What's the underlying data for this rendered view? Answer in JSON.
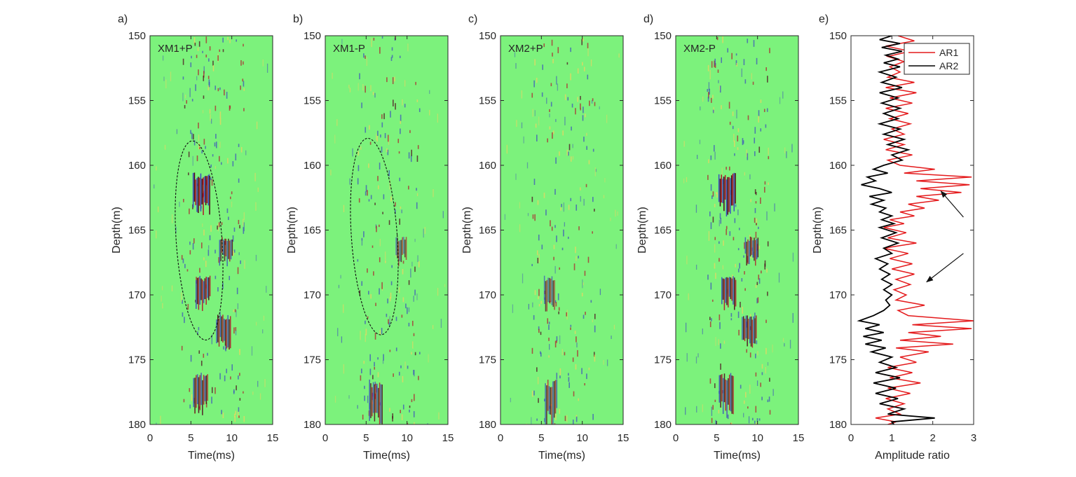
{
  "figure": {
    "panel_letters": [
      "a)",
      "b)",
      "c)",
      "d)",
      "e)"
    ]
  },
  "chart_data": [
    {
      "type": "heatmap",
      "panel": "a)",
      "inset_label": "XM1+P",
      "xlabel": "Time(ms)",
      "ylabel": "Depth(m)",
      "xlim": [
        0,
        15
      ],
      "ylim": [
        150,
        180
      ],
      "y_reversed": true,
      "xticks": [
        "0",
        "5",
        "10",
        "15"
      ],
      "yticks": [
        "150",
        "155",
        "160",
        "165",
        "170",
        "175",
        "180"
      ],
      "colormap": [
        "#3b4cc0",
        "#7fc97f",
        "#f4d35e",
        "#b2182b",
        "#4d0019"
      ],
      "background_color": "#7CF27C",
      "strong_reflections": [
        {
          "depth_from": 160.5,
          "depth_to": 163.5,
          "time": 6.3,
          "strength": 1.0
        },
        {
          "depth_from": 168.5,
          "depth_to": 171,
          "time": 6.5,
          "strength": 0.8
        },
        {
          "depth_from": 171.5,
          "depth_to": 174,
          "time": 9.0,
          "strength": 0.7
        },
        {
          "depth_from": 176,
          "depth_to": 179,
          "time": 6.2,
          "strength": 0.7
        },
        {
          "depth_from": 165.5,
          "depth_to": 167.5,
          "time": 9.3,
          "strength": 0.6
        }
      ],
      "ellipse": {
        "center_time": 6.0,
        "center_depth": 165.8,
        "half_width_time": 2.8,
        "half_height_depth": 7.7,
        "style": "dashed"
      }
    },
    {
      "type": "heatmap",
      "panel": "b)",
      "inset_label": "XM1-P",
      "xlabel": "Time(ms)",
      "ylabel": "Depth(m)",
      "xlim": [
        0,
        15
      ],
      "ylim": [
        150,
        180
      ],
      "y_reversed": true,
      "xticks": [
        "0",
        "5",
        "10",
        "15"
      ],
      "yticks": [
        "150",
        "155",
        "160",
        "165",
        "170",
        "175",
        "180"
      ],
      "colormap": [
        "#3b4cc0",
        "#7fc97f",
        "#f4d35e",
        "#b2182b",
        "#4d0019"
      ],
      "background_color": "#7CF27C",
      "strong_reflections": [
        {
          "depth_from": 176.5,
          "depth_to": 180,
          "time": 6.2,
          "strength": 0.6
        },
        {
          "depth_from": 165.5,
          "depth_to": 167.5,
          "time": 9.3,
          "strength": 0.35
        }
      ],
      "ellipse": {
        "center_time": 6.0,
        "center_depth": 165.5,
        "half_width_time": 2.8,
        "half_height_depth": 7.6,
        "style": "dashed"
      }
    },
    {
      "type": "heatmap",
      "panel": "c)",
      "inset_label": "XM2+P",
      "xlabel": "Time(ms)",
      "ylabel": "Depth(m)",
      "xlim": [
        0,
        15
      ],
      "ylim": [
        150,
        180
      ],
      "y_reversed": true,
      "xticks": [
        "0",
        "5",
        "10",
        "15"
      ],
      "yticks": [
        "150",
        "155",
        "160",
        "165",
        "170",
        "175",
        "180"
      ],
      "colormap": [
        "#3b4cc0",
        "#7fc97f",
        "#f4d35e",
        "#b2182b",
        "#4d0019"
      ],
      "background_color": "#7CF27C",
      "strong_reflections": [
        {
          "depth_from": 176.5,
          "depth_to": 180,
          "time": 6.2,
          "strength": 0.5
        },
        {
          "depth_from": 168.5,
          "depth_to": 171,
          "time": 6.0,
          "strength": 0.35
        }
      ]
    },
    {
      "type": "heatmap",
      "panel": "d)",
      "inset_label": "XM2-P",
      "xlabel": "Time(ms)",
      "ylabel": "Depth(m)",
      "xlim": [
        0,
        15
      ],
      "ylim": [
        150,
        180
      ],
      "y_reversed": true,
      "xticks": [
        "0",
        "5",
        "10",
        "15"
      ],
      "yticks": [
        "150",
        "155",
        "160",
        "165",
        "170",
        "175",
        "180"
      ],
      "colormap": [
        "#3b4cc0",
        "#7fc97f",
        "#f4d35e",
        "#b2182b",
        "#4d0019"
      ],
      "background_color": "#7CF27C",
      "strong_reflections": [
        {
          "depth_from": 160.5,
          "depth_to": 163.5,
          "time": 6.3,
          "strength": 1.0
        },
        {
          "depth_from": 168.5,
          "depth_to": 171,
          "time": 6.5,
          "strength": 0.8
        },
        {
          "depth_from": 171.5,
          "depth_to": 174,
          "time": 9.0,
          "strength": 0.7
        },
        {
          "depth_from": 176,
          "depth_to": 179,
          "time": 6.2,
          "strength": 0.7
        },
        {
          "depth_from": 165.5,
          "depth_to": 167.5,
          "time": 9.3,
          "strength": 0.6
        }
      ]
    },
    {
      "type": "line",
      "panel": "e)",
      "xlabel": "Amplitude ratio",
      "ylabel": "Depth(m)",
      "xlim": [
        0,
        3
      ],
      "ylim": [
        150,
        180
      ],
      "y_reversed": true,
      "xticks": [
        "0",
        "1",
        "2",
        "3"
      ],
      "yticks": [
        "150",
        "155",
        "160",
        "165",
        "170",
        "175",
        "180"
      ],
      "legend_position": "top-right",
      "series": [
        {
          "name": "AR1",
          "color": "#e41a1c",
          "points": [
            [
              1.15,
              150
            ],
            [
              1.55,
              150.4
            ],
            [
              0.85,
              150.8
            ],
            [
              1.45,
              151.2
            ],
            [
              0.9,
              151.6
            ],
            [
              1.3,
              152.0
            ],
            [
              0.95,
              152.4
            ],
            [
              1.2,
              152.8
            ],
            [
              0.9,
              153.2
            ],
            [
              1.55,
              153.6
            ],
            [
              0.85,
              154.0
            ],
            [
              1.6,
              154.4
            ],
            [
              0.95,
              154.8
            ],
            [
              1.5,
              155.2
            ],
            [
              0.85,
              155.6
            ],
            [
              1.4,
              156.0
            ],
            [
              0.95,
              156.4
            ],
            [
              1.45,
              156.8
            ],
            [
              1.0,
              157.2
            ],
            [
              1.3,
              157.6
            ],
            [
              0.8,
              158.0
            ],
            [
              1.3,
              158.4
            ],
            [
              0.85,
              158.8
            ],
            [
              1.5,
              159.2
            ],
            [
              0.9,
              159.6
            ],
            [
              1.2,
              160.0
            ],
            [
              2.05,
              160.3
            ],
            [
              1.3,
              160.6
            ],
            [
              2.95,
              160.9
            ],
            [
              1.6,
              161.2
            ],
            [
              2.9,
              161.5
            ],
            [
              1.7,
              161.8
            ],
            [
              2.7,
              162.1
            ],
            [
              1.6,
              162.4
            ],
            [
              2.15,
              162.7
            ],
            [
              1.4,
              163.0
            ],
            [
              1.8,
              163.3
            ],
            [
              1.2,
              163.6
            ],
            [
              1.55,
              163.9
            ],
            [
              0.95,
              164.2
            ],
            [
              1.3,
              164.5
            ],
            [
              0.8,
              164.8
            ],
            [
              1.35,
              165.2
            ],
            [
              0.9,
              165.6
            ],
            [
              1.6,
              166.0
            ],
            [
              0.8,
              166.4
            ],
            [
              1.4,
              166.8
            ],
            [
              0.95,
              167.2
            ],
            [
              1.5,
              167.6
            ],
            [
              1.0,
              168.0
            ],
            [
              1.55,
              168.4
            ],
            [
              1.1,
              168.8
            ],
            [
              1.45,
              169.2
            ],
            [
              1.05,
              169.6
            ],
            [
              1.35,
              170.0
            ],
            [
              1.1,
              170.4
            ],
            [
              1.8,
              170.8
            ],
            [
              1.15,
              171.2
            ],
            [
              1.4,
              171.6
            ],
            [
              3.0,
              172.0
            ],
            [
              1.5,
              172.3
            ],
            [
              2.95,
              172.6
            ],
            [
              1.4,
              172.9
            ],
            [
              2.2,
              173.2
            ],
            [
              1.2,
              173.5
            ],
            [
              2.5,
              173.8
            ],
            [
              1.1,
              174.1
            ],
            [
              1.9,
              174.4
            ],
            [
              1.2,
              174.8
            ],
            [
              1.6,
              175.2
            ],
            [
              0.9,
              175.6
            ],
            [
              1.5,
              176.0
            ],
            [
              0.95,
              176.4
            ],
            [
              1.7,
              176.8
            ],
            [
              0.9,
              177.2
            ],
            [
              1.45,
              177.6
            ],
            [
              0.85,
              178.0
            ],
            [
              1.3,
              178.4
            ],
            [
              0.9,
              178.8
            ],
            [
              1.2,
              179.2
            ],
            [
              0.6,
              179.5
            ],
            [
              1.1,
              179.8
            ],
            [
              0.9,
              180.0
            ]
          ]
        },
        {
          "name": "AR2",
          "color": "#000000",
          "points": [
            [
              1.0,
              150
            ],
            [
              0.7,
              150.3
            ],
            [
              1.2,
              150.6
            ],
            [
              0.75,
              150.9
            ],
            [
              1.25,
              151.2
            ],
            [
              0.85,
              151.5
            ],
            [
              1.15,
              151.8
            ],
            [
              0.8,
              152.1
            ],
            [
              1.2,
              152.4
            ],
            [
              0.7,
              152.8
            ],
            [
              1.1,
              153.2
            ],
            [
              0.75,
              153.6
            ],
            [
              1.25,
              154.0
            ],
            [
              0.7,
              154.4
            ],
            [
              1.15,
              154.8
            ],
            [
              0.75,
              155.2
            ],
            [
              1.2,
              155.6
            ],
            [
              0.8,
              156.0
            ],
            [
              1.15,
              156.4
            ],
            [
              0.7,
              156.8
            ],
            [
              1.2,
              157.2
            ],
            [
              0.8,
              157.6
            ],
            [
              1.3,
              158.0
            ],
            [
              0.9,
              158.4
            ],
            [
              1.4,
              158.8
            ],
            [
              1.0,
              159.2
            ],
            [
              1.25,
              159.6
            ],
            [
              0.8,
              160.0
            ],
            [
              0.55,
              160.3
            ],
            [
              0.9,
              160.6
            ],
            [
              0.4,
              160.9
            ],
            [
              0.6,
              161.2
            ],
            [
              0.25,
              161.5
            ],
            [
              0.7,
              161.8
            ],
            [
              1.0,
              162.1
            ],
            [
              0.45,
              162.4
            ],
            [
              0.8,
              162.7
            ],
            [
              0.5,
              163.0
            ],
            [
              0.85,
              163.3
            ],
            [
              0.7,
              163.6
            ],
            [
              1.0,
              163.9
            ],
            [
              0.75,
              164.2
            ],
            [
              1.05,
              164.5
            ],
            [
              0.7,
              164.8
            ],
            [
              1.1,
              165.2
            ],
            [
              0.75,
              165.6
            ],
            [
              1.15,
              166.0
            ],
            [
              0.8,
              166.4
            ],
            [
              1.0,
              166.8
            ],
            [
              0.6,
              167.2
            ],
            [
              0.9,
              167.6
            ],
            [
              0.7,
              168.0
            ],
            [
              0.95,
              168.4
            ],
            [
              0.75,
              168.8
            ],
            [
              1.0,
              169.2
            ],
            [
              0.8,
              169.6
            ],
            [
              1.0,
              170.0
            ],
            [
              0.85,
              170.4
            ],
            [
              0.95,
              170.8
            ],
            [
              0.8,
              171.2
            ],
            [
              0.55,
              171.6
            ],
            [
              0.2,
              172.0
            ],
            [
              0.7,
              172.3
            ],
            [
              0.35,
              172.6
            ],
            [
              0.8,
              172.9
            ],
            [
              0.3,
              173.2
            ],
            [
              0.75,
              173.5
            ],
            [
              0.35,
              173.8
            ],
            [
              0.85,
              174.1
            ],
            [
              0.5,
              174.4
            ],
            [
              1.0,
              174.8
            ],
            [
              0.7,
              175.2
            ],
            [
              1.1,
              175.6
            ],
            [
              0.6,
              176.0
            ],
            [
              1.2,
              176.4
            ],
            [
              0.55,
              176.8
            ],
            [
              1.1,
              177.2
            ],
            [
              0.6,
              177.6
            ],
            [
              1.15,
              178.0
            ],
            [
              0.7,
              178.4
            ],
            [
              1.3,
              178.8
            ],
            [
              0.9,
              179.2
            ],
            [
              2.05,
              179.5
            ],
            [
              1.0,
              179.8
            ],
            [
              1.05,
              180.0
            ]
          ]
        }
      ],
      "arrows": [
        {
          "from": [
            2.75,
            164.0
          ],
          "to": [
            2.2,
            162.0
          ]
        },
        {
          "from": [
            2.75,
            166.8
          ],
          "to": [
            1.85,
            169.0
          ]
        }
      ]
    }
  ]
}
